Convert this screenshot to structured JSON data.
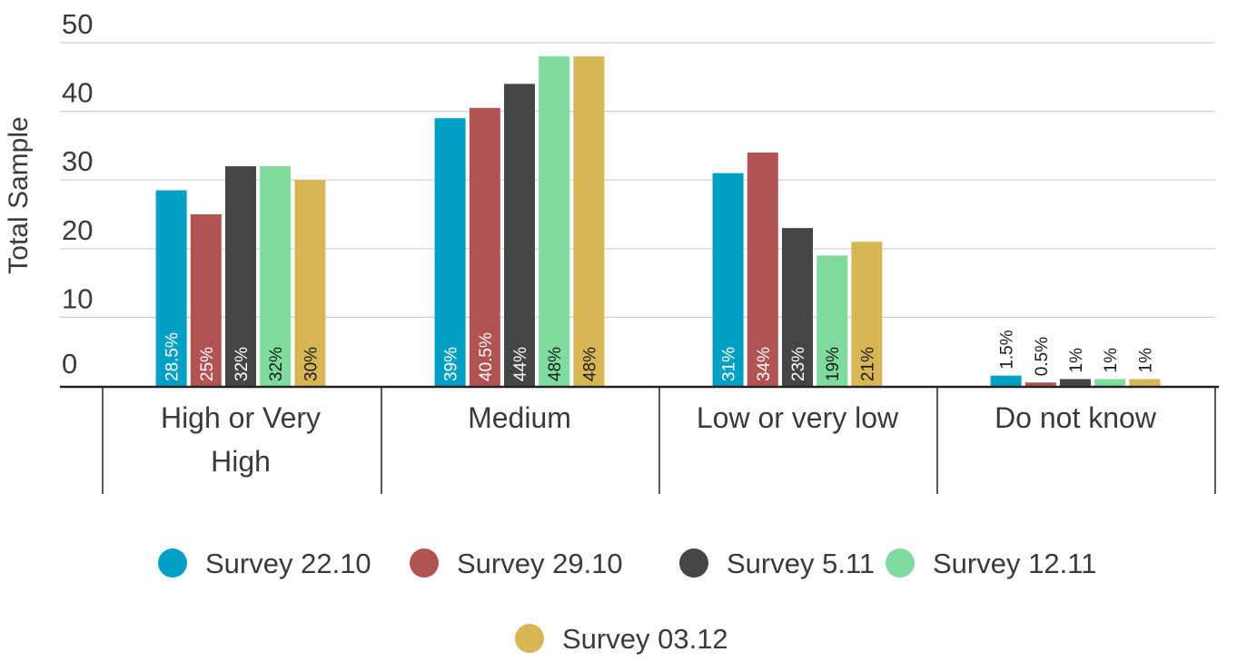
{
  "chart_data": {
    "type": "bar",
    "title": "",
    "xlabel": "",
    "ylabel": "Total Sample",
    "ylim": [
      0,
      50
    ],
    "yticks": [
      0,
      10,
      20,
      30,
      40,
      50
    ],
    "grid": true,
    "legend_position": "bottom",
    "categories": [
      [
        "High or Very",
        "High"
      ],
      [
        "Medium"
      ],
      [
        "Low or very low"
      ],
      [
        "Do not know"
      ]
    ],
    "series": [
      {
        "name": "Survey 22.10",
        "color": "#00a0c6",
        "values": [
          28.5,
          39,
          31,
          1.5
        ],
        "labels": [
          "28.5%",
          "39%",
          "31%",
          "1.5%"
        ]
      },
      {
        "name": "Survey 29.10",
        "color": "#b05352",
        "values": [
          25,
          40.5,
          34,
          0.5
        ],
        "labels": [
          "25%",
          "40.5%",
          "34%",
          "0.5%"
        ]
      },
      {
        "name": "Survey 5.11",
        "color": "#454545",
        "values": [
          32,
          44,
          23,
          1
        ],
        "labels": [
          "32%",
          "44%",
          "23%",
          "1%"
        ]
      },
      {
        "name": "Survey 12.11",
        "color": "#7fdc9e",
        "values": [
          32,
          48,
          19,
          1
        ],
        "labels": [
          "32%",
          "48%",
          "19%",
          "1%"
        ]
      },
      {
        "name": "Survey 03.12",
        "color": "#d6b655",
        "values": [
          30,
          48,
          21,
          1
        ],
        "labels": [
          "30%",
          "48%",
          "21%",
          "1%"
        ]
      }
    ]
  }
}
